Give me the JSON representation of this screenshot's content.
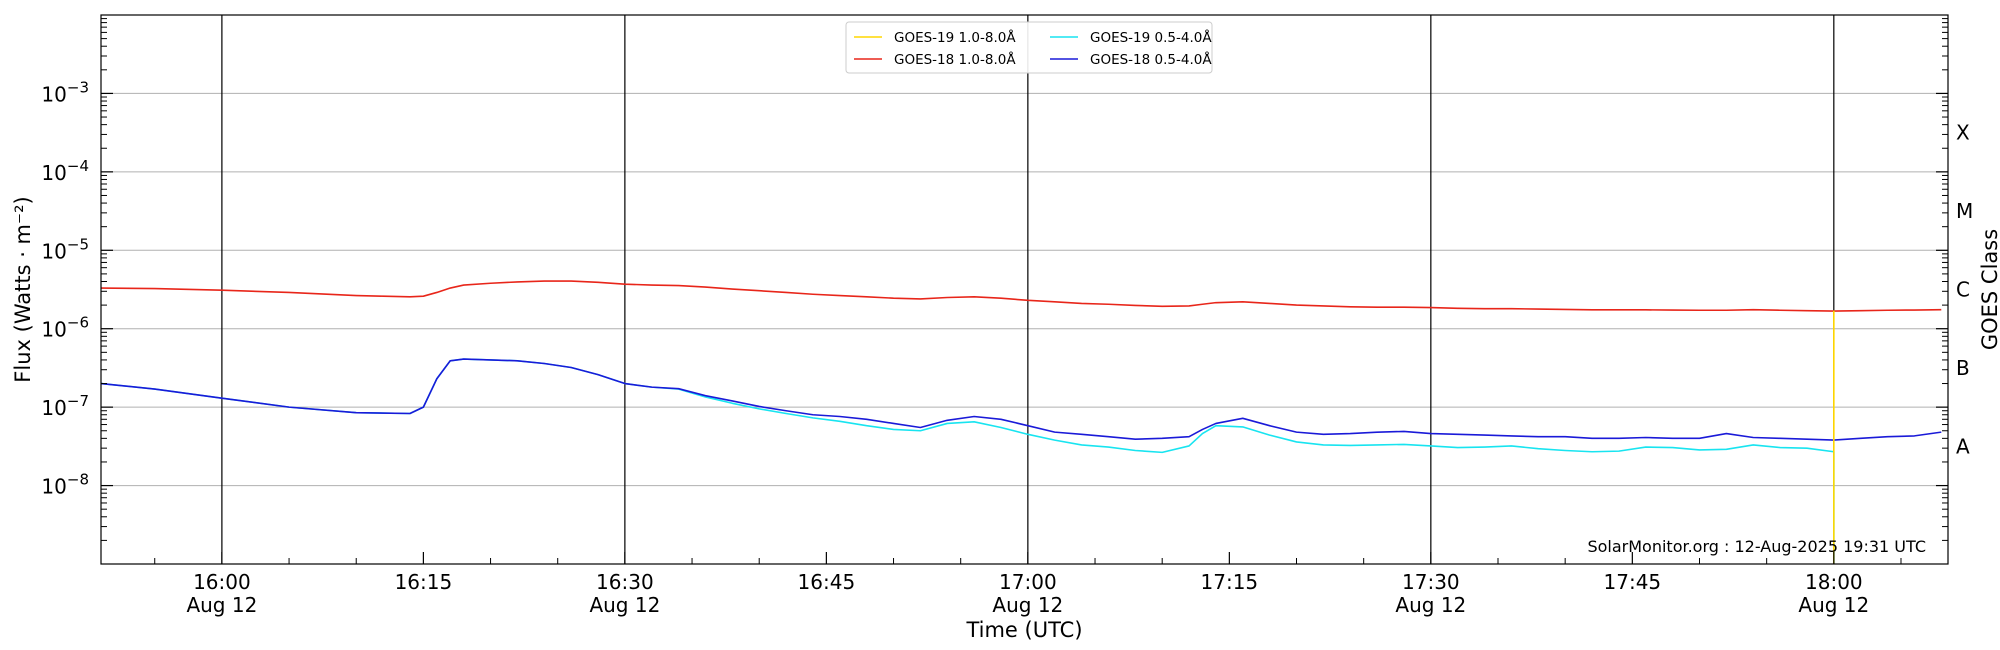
{
  "chart_data": {
    "type": "line",
    "title": "",
    "xlabel": "Time (UTC)",
    "ylabel": "Flux (Watts · m⁻²)",
    "ylabel_right": "GOES Class",
    "y_scale": "log",
    "ylim": [
      1e-09,
      0.01
    ],
    "xlim_minutes": [
      -9,
      128.5
    ],
    "x_ticks": [
      {
        "t": 0,
        "time": "16:00",
        "date": "Aug 12"
      },
      {
        "t": 15,
        "time": "16:15",
        "date": ""
      },
      {
        "t": 30,
        "time": "16:30",
        "date": "Aug 12"
      },
      {
        "t": 45,
        "time": "16:45",
        "date": ""
      },
      {
        "t": 60,
        "time": "17:00",
        "date": "Aug 12"
      },
      {
        "t": 75,
        "time": "17:15",
        "date": ""
      },
      {
        "t": 90,
        "time": "17:30",
        "date": "Aug 12"
      },
      {
        "t": 105,
        "time": "17:45",
        "date": ""
      },
      {
        "t": 120,
        "time": "18:00",
        "date": "Aug 12"
      }
    ],
    "y_ticks": [
      {
        "v": 1e-08,
        "base": "10",
        "exp": "−8"
      },
      {
        "v": 1e-07,
        "base": "10",
        "exp": "−7"
      },
      {
        "v": 1e-06,
        "base": "10",
        "exp": "−6"
      },
      {
        "v": 1e-05,
        "base": "10",
        "exp": "−5"
      },
      {
        "v": 0.0001,
        "base": "10",
        "exp": "−4"
      },
      {
        "v": 0.001,
        "base": "10",
        "exp": "−3"
      }
    ],
    "goes_classes": [
      {
        "label": "A",
        "v": 3.16e-08
      },
      {
        "label": "B",
        "v": 3.16e-07
      },
      {
        "label": "C",
        "v": 3.16e-06
      },
      {
        "label": "M",
        "v": 3.16e-05
      },
      {
        "label": "X",
        "v": 0.000316
      }
    ],
    "vertical_lines_minutes": [
      0,
      30,
      60,
      90,
      120
    ],
    "grid": "horizontal at decades",
    "legend_position": "top-center",
    "series": [
      {
        "name": "GOES-19 1.0-8.0Å",
        "color": "#ffd700",
        "x": [
          120,
          120
        ],
        "y": [
          1.7e-06,
          1e-09
        ]
      },
      {
        "name": "GOES-18 1.0-8.0Å",
        "color": "#e8261a",
        "x": [
          -9,
          -5,
          0,
          5,
          10,
          12,
          14,
          15,
          16,
          17,
          18,
          20,
          22,
          24,
          26,
          28,
          30,
          32,
          34,
          36,
          38,
          40,
          42,
          44,
          46,
          48,
          50,
          52,
          54,
          56,
          58,
          60,
          62,
          64,
          66,
          68,
          70,
          72,
          73,
          74,
          76,
          78,
          80,
          82,
          84,
          86,
          88,
          90,
          92,
          94,
          96,
          98,
          100,
          102,
          104,
          106,
          108,
          110,
          112,
          114,
          116,
          118,
          120,
          122,
          124,
          126,
          128
        ],
        "y": [
          3.3e-06,
          3.25e-06,
          3.1e-06,
          2.9e-06,
          2.65e-06,
          2.6e-06,
          2.55e-06,
          2.6e-06,
          2.9e-06,
          3.3e-06,
          3.6e-06,
          3.8e-06,
          3.95e-06,
          4.05e-06,
          4.05e-06,
          3.9e-06,
          3.7e-06,
          3.6e-06,
          3.55e-06,
          3.4e-06,
          3.2e-06,
          3.05e-06,
          2.9e-06,
          2.75e-06,
          2.65e-06,
          2.55e-06,
          2.45e-06,
          2.4e-06,
          2.5e-06,
          2.55e-06,
          2.45e-06,
          2.3e-06,
          2.2e-06,
          2.1e-06,
          2.05e-06,
          1.98e-06,
          1.93e-06,
          1.95e-06,
          2.05e-06,
          2.15e-06,
          2.2e-06,
          2.1e-06,
          2e-06,
          1.95e-06,
          1.9e-06,
          1.88e-06,
          1.88e-06,
          1.86e-06,
          1.82e-06,
          1.8e-06,
          1.8e-06,
          1.78e-06,
          1.76e-06,
          1.74e-06,
          1.74e-06,
          1.74e-06,
          1.73e-06,
          1.72e-06,
          1.72e-06,
          1.75e-06,
          1.72e-06,
          1.7e-06,
          1.68e-06,
          1.7e-06,
          1.72e-06,
          1.73e-06,
          1.75e-06
        ]
      },
      {
        "name": "GOES-19 0.5-4.0Å",
        "color": "#18e4f0",
        "x": [
          -9,
          -5,
          0,
          5,
          10,
          14,
          15,
          16,
          17,
          18,
          20,
          22,
          24,
          26,
          28,
          30,
          32,
          34,
          36,
          38,
          40,
          42,
          44,
          46,
          48,
          50,
          52,
          54,
          56,
          58,
          60,
          62,
          64,
          66,
          68,
          70,
          72,
          73,
          74,
          76,
          78,
          80,
          82,
          84,
          86,
          88,
          90,
          92,
          94,
          96,
          98,
          100,
          102,
          104,
          106,
          108,
          110,
          112,
          114,
          116,
          118,
          120,
          120
        ],
        "y": [
          2e-07,
          1.7e-07,
          1.3e-07,
          1e-07,
          8.5e-08,
          8.3e-08,
          1e-07,
          2.3e-07,
          3.9e-07,
          4.1e-07,
          4e-07,
          3.9e-07,
          3.6e-07,
          3.2e-07,
          2.6e-07,
          2e-07,
          1.8e-07,
          1.7e-07,
          1.35e-07,
          1.12e-07,
          9.5e-08,
          8.3e-08,
          7.3e-08,
          6.6e-08,
          5.8e-08,
          5.2e-08,
          5e-08,
          6.2e-08,
          6.5e-08,
          5.5e-08,
          4.5e-08,
          3.8e-08,
          3.3e-08,
          3.1e-08,
          2.8e-08,
          2.65e-08,
          3.2e-08,
          4.6e-08,
          5.8e-08,
          5.6e-08,
          4.4e-08,
          3.6e-08,
          3.3e-08,
          3.25e-08,
          3.3e-08,
          3.35e-08,
          3.2e-08,
          3.05e-08,
          3.1e-08,
          3.2e-08,
          2.95e-08,
          2.8e-08,
          2.7e-08,
          2.75e-08,
          3.1e-08,
          3.05e-08,
          2.85e-08,
          2.9e-08,
          3.3e-08,
          3.05e-08,
          3e-08,
          2.7e-08,
          1e-09
        ]
      },
      {
        "name": "GOES-18 0.5-4.0Å",
        "color": "#1a1ad8",
        "x": [
          -9,
          -5,
          0,
          5,
          10,
          14,
          15,
          16,
          17,
          18,
          20,
          22,
          24,
          26,
          28,
          30,
          32,
          34,
          36,
          38,
          40,
          42,
          44,
          46,
          48,
          50,
          52,
          54,
          56,
          58,
          60,
          62,
          64,
          66,
          68,
          70,
          72,
          73,
          74,
          76,
          78,
          80,
          82,
          84,
          86,
          88,
          90,
          92,
          94,
          96,
          98,
          100,
          102,
          104,
          106,
          108,
          110,
          112,
          114,
          116,
          118,
          120,
          122,
          124,
          126,
          128
        ],
        "y": [
          2e-07,
          1.7e-07,
          1.3e-07,
          1e-07,
          8.5e-08,
          8.3e-08,
          1e-07,
          2.3e-07,
          3.9e-07,
          4.1e-07,
          4e-07,
          3.9e-07,
          3.6e-07,
          3.2e-07,
          2.6e-07,
          2e-07,
          1.8e-07,
          1.72e-07,
          1.4e-07,
          1.2e-07,
          1.02e-07,
          9e-08,
          8e-08,
          7.6e-08,
          7e-08,
          6.2e-08,
          5.5e-08,
          6.8e-08,
          7.6e-08,
          7e-08,
          5.8e-08,
          4.8e-08,
          4.5e-08,
          4.2e-08,
          3.9e-08,
          4e-08,
          4.2e-08,
          5.2e-08,
          6.2e-08,
          7.2e-08,
          5.8e-08,
          4.8e-08,
          4.5e-08,
          4.6e-08,
          4.8e-08,
          4.9e-08,
          4.6e-08,
          4.5e-08,
          4.4e-08,
          4.3e-08,
          4.2e-08,
          4.2e-08,
          4e-08,
          4e-08,
          4.1e-08,
          4e-08,
          4e-08,
          4.6e-08,
          4.1e-08,
          4e-08,
          3.9e-08,
          3.8e-08,
          4e-08,
          4.2e-08,
          4.3e-08,
          4.8e-08
        ]
      }
    ]
  },
  "watermark": "SolarMonitor.org : 12-Aug-2025 19:31 UTC"
}
